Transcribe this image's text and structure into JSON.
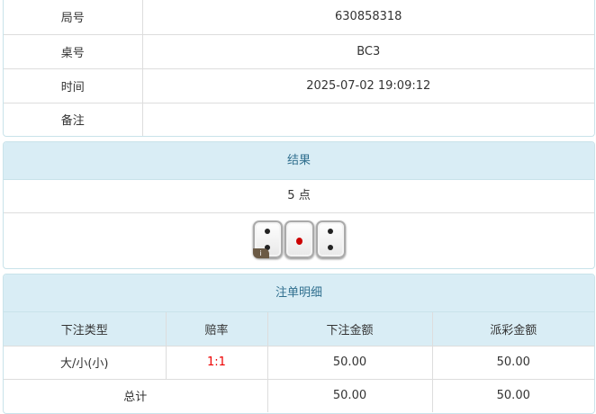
{
  "info": {
    "rows": [
      {
        "label": "局号",
        "value": "630858318"
      },
      {
        "label": "桌号",
        "value": "BC3"
      },
      {
        "label": "时间",
        "value": "2025-07-02 19:09:12"
      },
      {
        "label": "备注",
        "value": ""
      }
    ]
  },
  "result": {
    "title": "结果",
    "points": "5 点",
    "dice": [
      2,
      1,
      2
    ],
    "badge": "i"
  },
  "bets": {
    "title": "注单明细",
    "columns": [
      "下注类型",
      "赔率",
      "下注金额",
      "派彩金额"
    ],
    "rows": [
      {
        "type": "大/小(小)",
        "odds": "1:1",
        "amount": "50.00",
        "payout": "50.00"
      }
    ],
    "total": {
      "label": "总计",
      "amount": "50.00",
      "payout": "50.00"
    }
  },
  "colors": {
    "header_bg": "#d9edf5",
    "header_text": "#31708f",
    "odds": "#ee0000"
  }
}
